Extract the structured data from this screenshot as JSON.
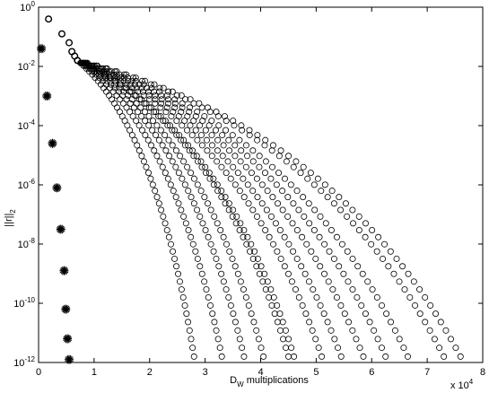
{
  "chart_data": {
    "type": "scatter",
    "title": "",
    "xlabel": "D",
    "xlabel_subscript": "W",
    "xlabel_rest": " multiplications",
    "ylabel": "||r||",
    "ylabel_subscript": "2",
    "x_multiplier": "x 10",
    "x_multiplier_exp": "4",
    "xscale": "linear",
    "yscale": "log",
    "xlim": [
      0,
      8
    ],
    "ylim": [
      1e-12,
      1
    ],
    "grid": false,
    "legend": "none",
    "x_ticks": [
      {
        "value": 0,
        "label": "0"
      },
      {
        "value": 1,
        "label": "1"
      },
      {
        "value": 2,
        "label": "2"
      },
      {
        "value": 3,
        "label": "3"
      },
      {
        "value": 4,
        "label": "4"
      },
      {
        "value": 5,
        "label": "5"
      },
      {
        "value": 6,
        "label": "6"
      },
      {
        "value": 7,
        "label": "7"
      },
      {
        "value": 8,
        "label": "8"
      }
    ],
    "y_ticks": [
      {
        "exp": 0,
        "base": "10",
        "sup": "0"
      },
      {
        "exp": -2,
        "base": "10",
        "sup": "-2"
      },
      {
        "exp": -4,
        "base": "10",
        "sup": "-4"
      },
      {
        "exp": -6,
        "base": "10",
        "sup": "-6"
      },
      {
        "exp": -8,
        "base": "10",
        "sup": "-8"
      },
      {
        "exp": -10,
        "base": "10",
        "sup": "-10"
      },
      {
        "exp": -12,
        "base": "10",
        "sup": "-12"
      }
    ],
    "series": [
      {
        "marker": "star",
        "points": [
          [
            0.05,
            -1.4
          ],
          [
            0.15,
            -3.0
          ],
          [
            0.25,
            -4.6
          ],
          [
            0.33,
            -6.1
          ],
          [
            0.4,
            -7.5
          ],
          [
            0.46,
            -8.9
          ],
          [
            0.49,
            -10.2
          ],
          [
            0.52,
            -11.2
          ],
          [
            0.55,
            -11.9
          ]
        ]
      },
      {
        "marker": "circle",
        "points": [
          [
            0.18,
            -0.4
          ],
          [
            0.42,
            -0.9
          ],
          [
            0.55,
            -1.2
          ],
          [
            0.6,
            -1.5
          ],
          [
            0.65,
            -1.65
          ],
          [
            0.7,
            -1.8
          ]
        ]
      },
      {
        "marker": "circle",
        "points": [
          [
            0.7,
            -1.8
          ],
          [
            2.8,
            -11.8
          ]
        ]
      },
      {
        "marker": "circle",
        "points": [
          [
            0.7,
            -1.8
          ],
          [
            3.3,
            -11.8
          ]
        ]
      },
      {
        "marker": "circle",
        "points": [
          [
            0.7,
            -1.8
          ],
          [
            3.7,
            -11.8
          ]
        ]
      },
      {
        "marker": "circle",
        "points": [
          [
            0.7,
            -1.8
          ],
          [
            4.05,
            -11.8
          ]
        ]
      },
      {
        "marker": "circle",
        "points": [
          [
            0.7,
            -1.8
          ],
          [
            4.5,
            -11.8
          ]
        ]
      },
      {
        "marker": "circle",
        "points": [
          [
            0.7,
            -1.8
          ],
          [
            4.6,
            -11.8
          ]
        ]
      },
      {
        "marker": "circle",
        "points": [
          [
            0.7,
            -1.8
          ],
          [
            5.1,
            -11.8
          ]
        ]
      },
      {
        "marker": "circle",
        "points": [
          [
            0.7,
            -1.8
          ],
          [
            5.45,
            -11.8
          ]
        ]
      },
      {
        "marker": "circle",
        "points": [
          [
            0.7,
            -1.8
          ],
          [
            5.85,
            -11.8
          ]
        ]
      },
      {
        "marker": "circle",
        "points": [
          [
            0.7,
            -1.8
          ],
          [
            6.25,
            -11.8
          ]
        ]
      },
      {
        "marker": "circle",
        "points": [
          [
            0.7,
            -1.8
          ],
          [
            6.65,
            -11.8
          ]
        ]
      },
      {
        "marker": "circle",
        "points": [
          [
            0.7,
            -1.8
          ],
          [
            7.3,
            -11.8
          ]
        ]
      },
      {
        "marker": "circle",
        "points": [
          [
            0.7,
            -1.8
          ],
          [
            7.6,
            -11.8
          ]
        ]
      }
    ]
  }
}
